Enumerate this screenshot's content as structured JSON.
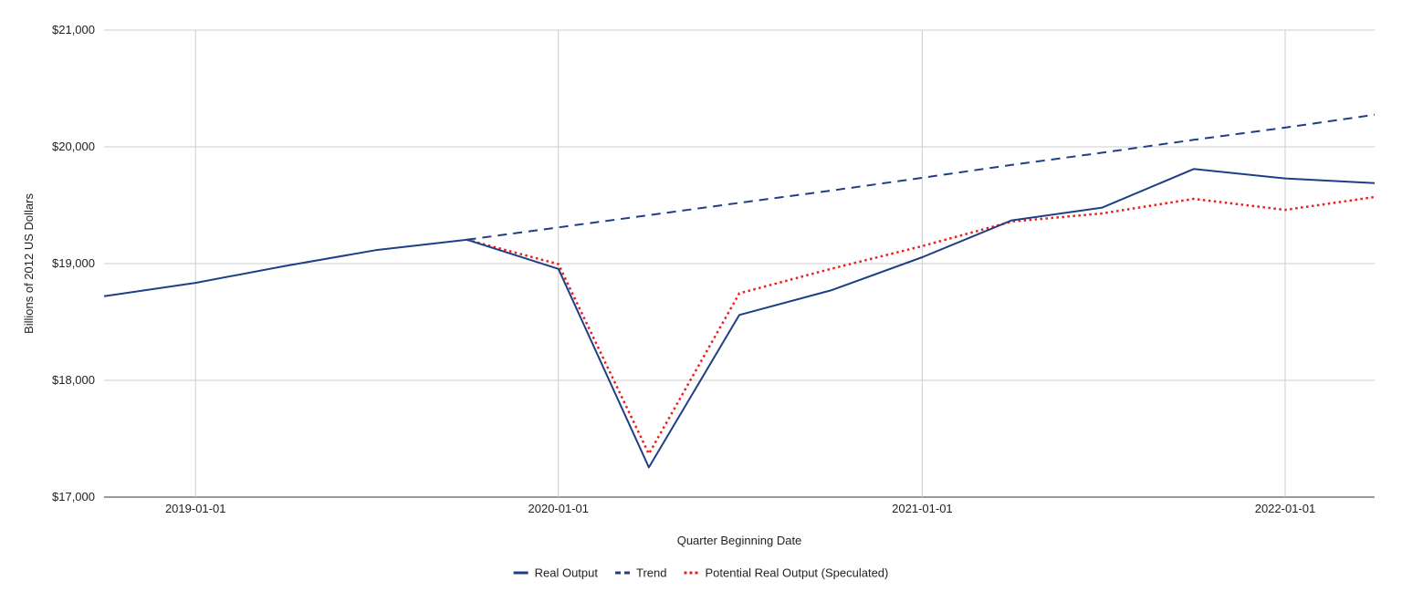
{
  "chart_data": {
    "type": "line",
    "title": "",
    "xlabel": "Quarter Beginning Date",
    "ylabel": "Billions of 2012 US Dollars",
    "x_dates": [
      "2018-10-01",
      "2019-01-01",
      "2019-04-01",
      "2019-07-01",
      "2019-10-01",
      "2020-01-01",
      "2020-04-01",
      "2020-07-01",
      "2020-10-01",
      "2021-01-01",
      "2021-04-01",
      "2021-07-01",
      "2021-10-01",
      "2022-01-01",
      "2022-04-01"
    ],
    "x_tick_labels": [
      "2019-01-01",
      "2020-01-01",
      "2021-01-01",
      "2022-01-01"
    ],
    "x_tick_dates": [
      "2019-01-01",
      "2020-01-01",
      "2021-01-01",
      "2022-01-01"
    ],
    "ylim": [
      17000,
      21000
    ],
    "y_ticks": [
      17000,
      18000,
      19000,
      20000,
      21000
    ],
    "y_tick_labels": [
      "$17,000",
      "$18,000",
      "$19,000",
      "$20,000",
      "$21,000"
    ],
    "grid": true,
    "legend_position": "bottom",
    "series": [
      {
        "name": "Real Output",
        "color": "#1f3f85",
        "style": "solid",
        "x": [
          "2018-10-01",
          "2019-01-01",
          "2019-04-01",
          "2019-07-01",
          "2019-10-01",
          "2020-01-01",
          "2020-04-01",
          "2020-07-01",
          "2020-10-01",
          "2021-01-01",
          "2021-04-01",
          "2021-07-01",
          "2021-10-01",
          "2022-01-01",
          "2022-04-01"
        ],
        "values": [
          18720,
          18835,
          18980,
          19115,
          19205,
          18955,
          17255,
          18560,
          18770,
          19055,
          19370,
          19480,
          19810,
          19730,
          19690
        ]
      },
      {
        "name": "Trend",
        "color": "#1f3f85",
        "style": "dashed",
        "x": [
          "2019-10-01",
          "2020-01-01",
          "2020-04-01",
          "2020-07-01",
          "2020-10-01",
          "2021-01-01",
          "2021-04-01",
          "2021-07-01",
          "2021-10-01",
          "2022-01-01",
          "2022-04-01"
        ],
        "values": [
          19205,
          19310,
          19415,
          19520,
          19625,
          19735,
          19845,
          19950,
          20060,
          20165,
          20275
        ]
      },
      {
        "name": "Potential Real Output (Speculated)",
        "color": "#ee1c1c",
        "style": "dotted",
        "x": [
          "2019-10-01",
          "2020-01-01",
          "2020-04-01",
          "2020-07-01",
          "2020-10-01",
          "2021-01-01",
          "2021-04-01",
          "2021-07-01",
          "2021-10-01",
          "2022-01-01",
          "2022-04-01"
        ],
        "values": [
          19205,
          18995,
          17370,
          18745,
          18955,
          19150,
          19360,
          19430,
          19555,
          19460,
          19570
        ]
      }
    ]
  }
}
